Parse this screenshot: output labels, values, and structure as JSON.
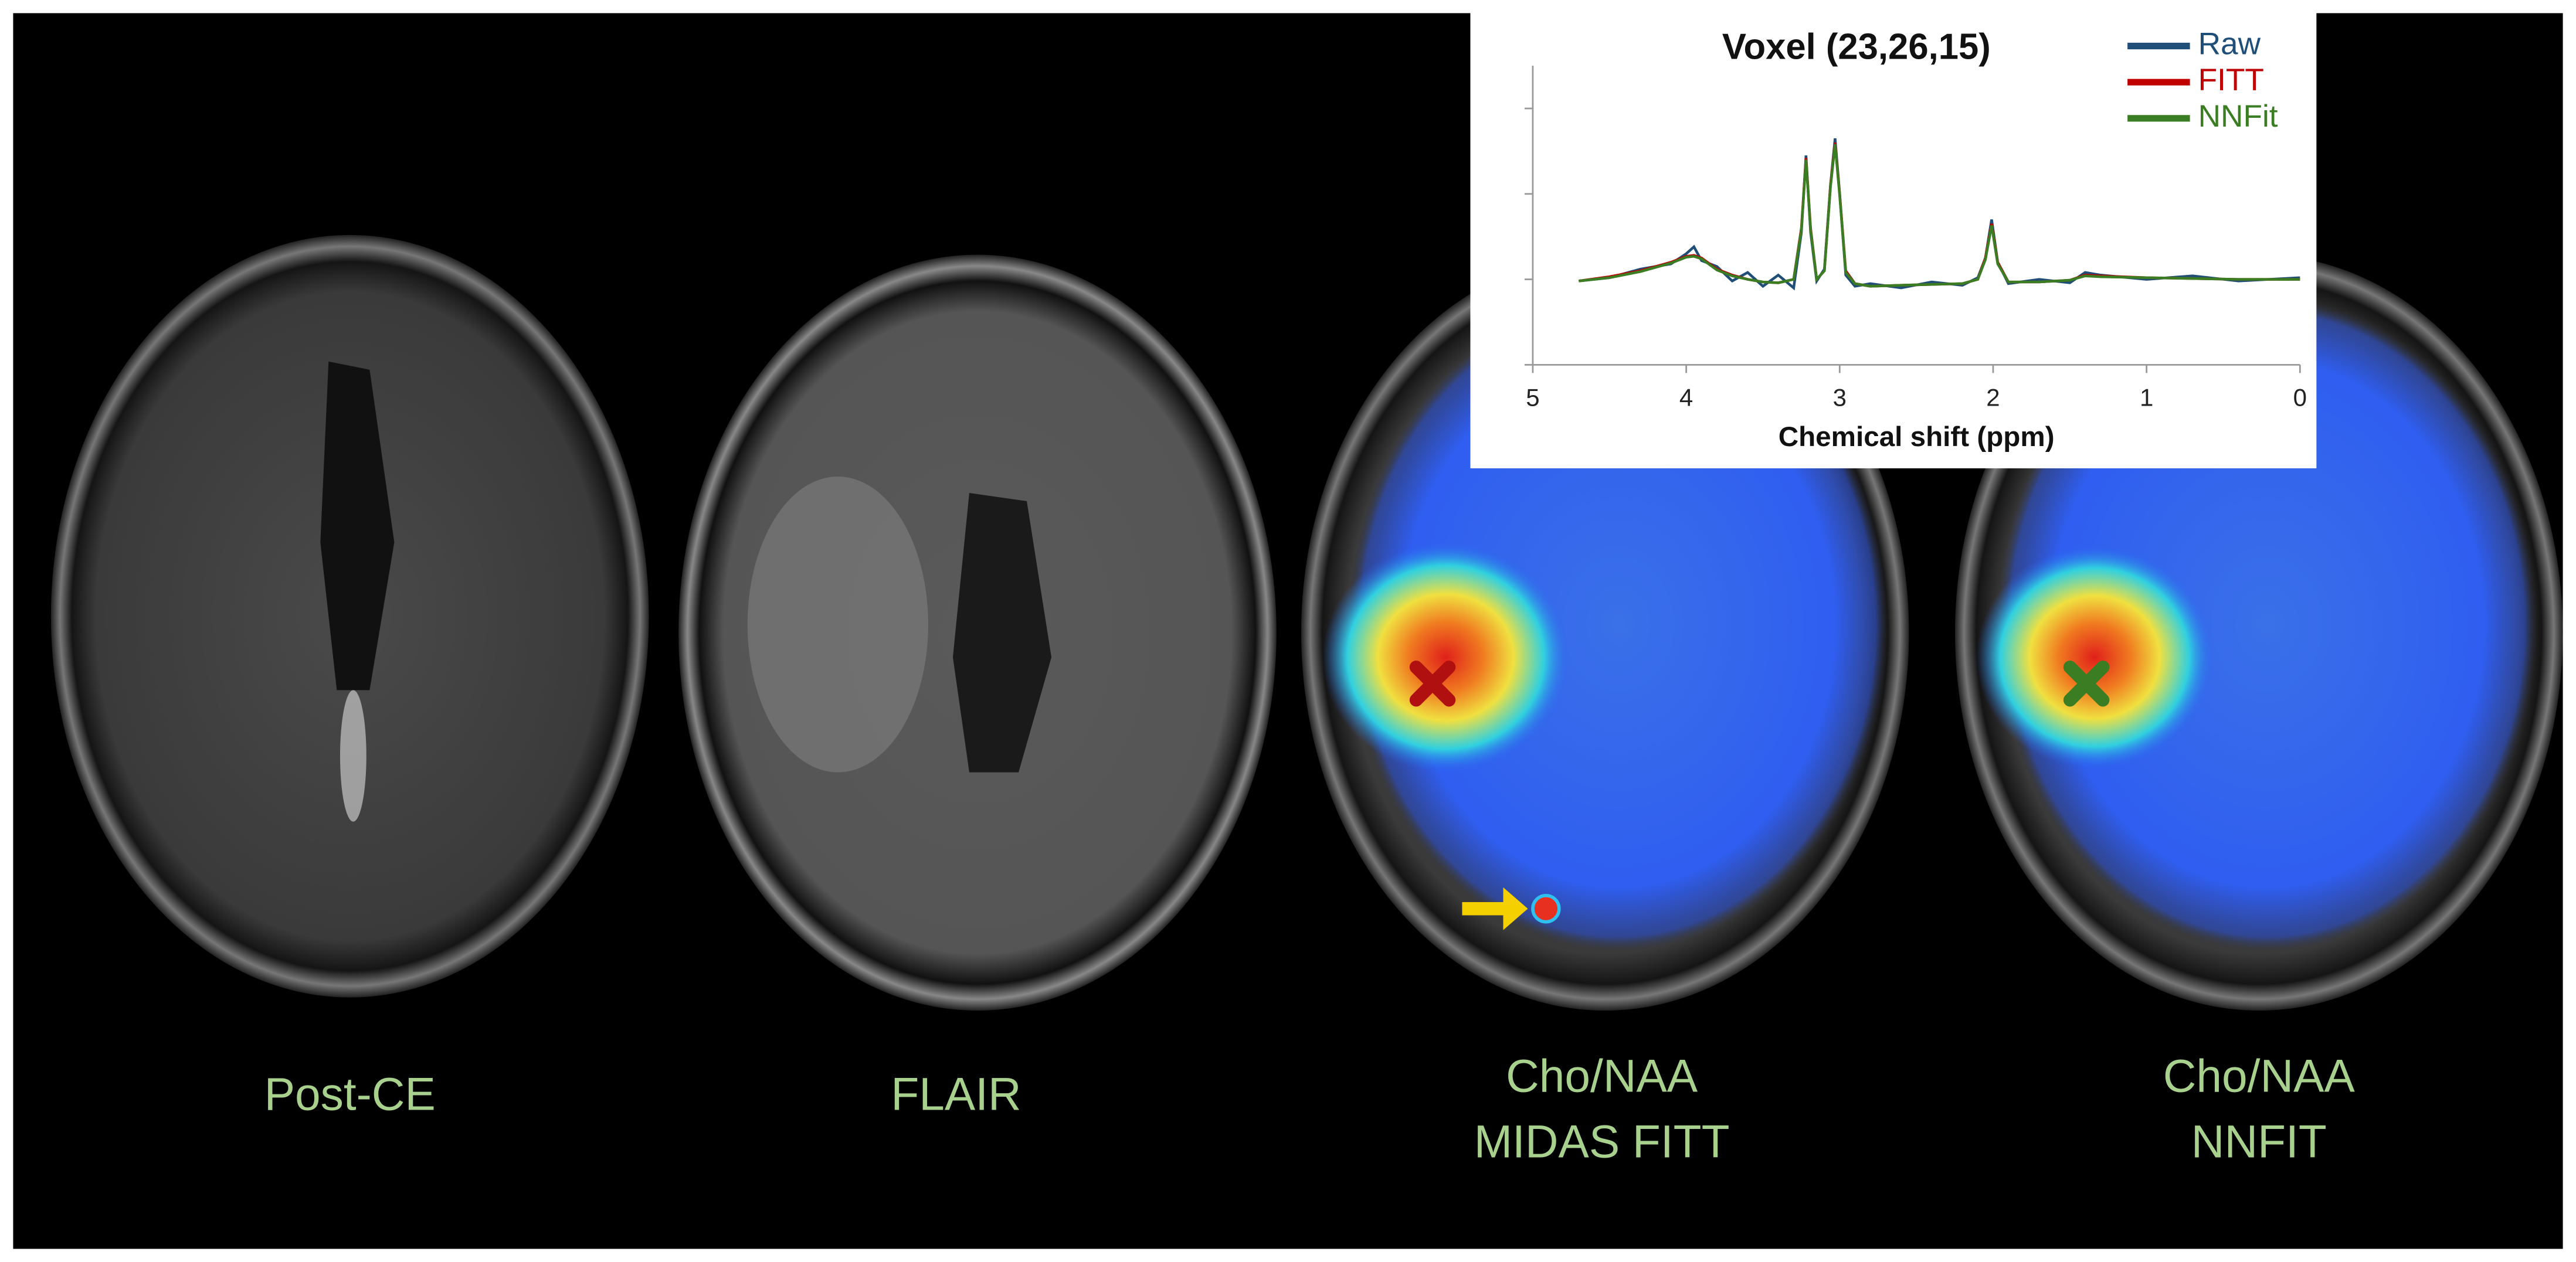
{
  "panels": [
    {
      "label_lines": [
        "Post-CE"
      ]
    },
    {
      "label_lines": [
        "FLAIR"
      ]
    },
    {
      "label_lines": [
        "Cho/NAA",
        "MIDAS FITT"
      ]
    },
    {
      "label_lines": [
        "Cho/NAA",
        "NNFIT"
      ]
    }
  ],
  "chart_data": {
    "type": "line",
    "title": "Voxel (23,26,15)",
    "x_label": "Chemical shift (ppm)",
    "xlim": [
      5,
      0
    ],
    "xticks": [
      5,
      4,
      3,
      2,
      1,
      0
    ],
    "ylim": [
      0,
      3.5
    ],
    "yticks": [
      0,
      1,
      2,
      3
    ],
    "x": [
      4.7,
      4.5,
      4.3,
      4.1,
      4.0,
      3.95,
      3.9,
      3.8,
      3.7,
      3.6,
      3.5,
      3.4,
      3.3,
      3.25,
      3.22,
      3.19,
      3.15,
      3.1,
      3.06,
      3.03,
      3.0,
      2.96,
      2.9,
      2.8,
      2.6,
      2.4,
      2.2,
      2.1,
      2.05,
      2.01,
      1.97,
      1.9,
      1.7,
      1.5,
      1.4,
      1.3,
      1.0,
      0.7,
      0.4,
      0.0
    ],
    "series": [
      {
        "name": "Raw",
        "color": "#1f4e79",
        "values": [
          0.98,
          1.02,
          1.12,
          1.18,
          1.3,
          1.38,
          1.22,
          1.15,
          0.98,
          1.08,
          0.92,
          1.05,
          0.9,
          1.55,
          2.45,
          1.55,
          0.98,
          1.12,
          2.1,
          2.65,
          2.0,
          1.05,
          0.92,
          0.95,
          0.9,
          0.97,
          0.93,
          1.02,
          1.25,
          1.7,
          1.2,
          0.95,
          1.0,
          0.96,
          1.08,
          1.05,
          1.0,
          1.04,
          0.98,
          1.02
        ]
      },
      {
        "name": "FITT",
        "color": "#c00000",
        "values": [
          0.98,
          1.03,
          1.1,
          1.2,
          1.27,
          1.28,
          1.25,
          1.12,
          1.05,
          1.0,
          0.97,
          0.96,
          1.0,
          1.6,
          2.42,
          1.6,
          1.0,
          1.1,
          2.1,
          2.6,
          2.0,
          1.1,
          0.95,
          0.92,
          0.93,
          0.94,
          0.95,
          1.0,
          1.25,
          1.65,
          1.2,
          0.97,
          0.97,
          0.99,
          1.05,
          1.04,
          1.02,
          1.01,
          1.0,
          1.0
        ]
      },
      {
        "name": "NNFit",
        "color": "#3a7d22",
        "values": [
          0.98,
          1.02,
          1.09,
          1.19,
          1.26,
          1.27,
          1.24,
          1.11,
          1.04,
          1.0,
          0.97,
          0.96,
          1.0,
          1.58,
          2.4,
          1.58,
          1.0,
          1.1,
          2.08,
          2.58,
          1.98,
          1.08,
          0.95,
          0.92,
          0.93,
          0.94,
          0.95,
          1.0,
          1.23,
          1.63,
          1.18,
          0.97,
          0.97,
          0.99,
          1.04,
          1.03,
          1.02,
          1.01,
          1.0,
          1.0
        ]
      }
    ]
  }
}
